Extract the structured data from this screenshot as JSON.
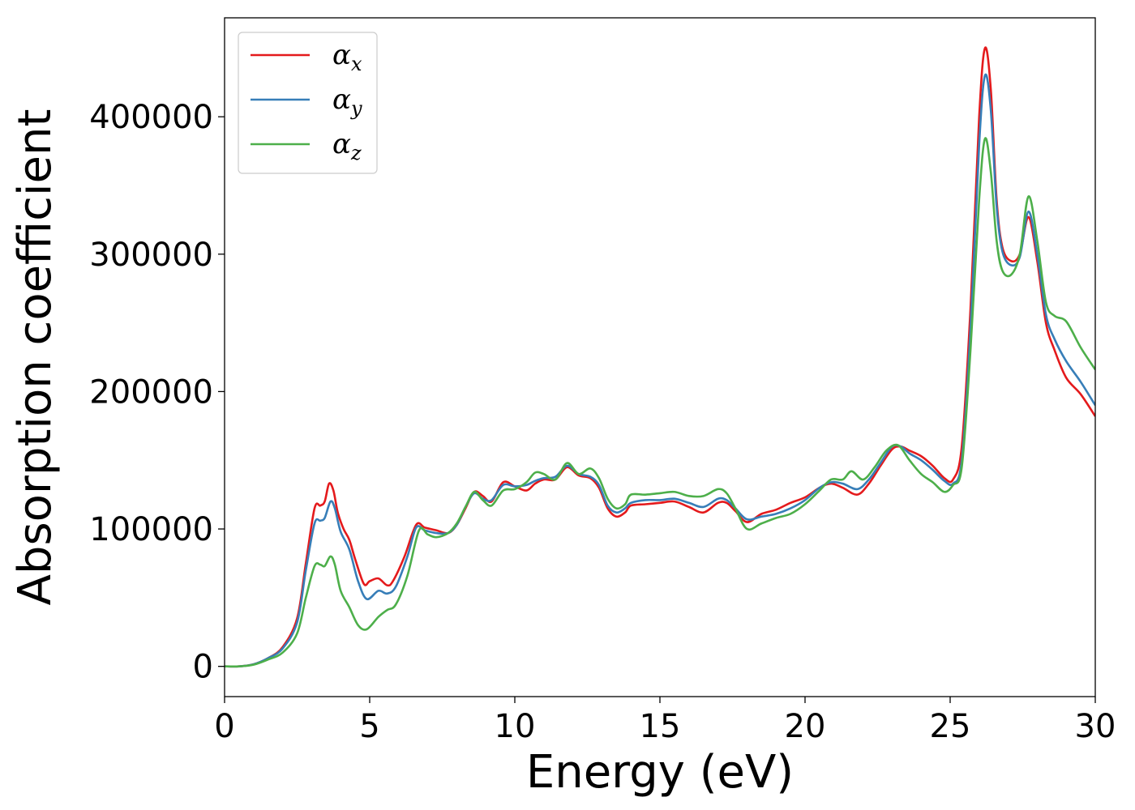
{
  "chart_data": {
    "type": "line",
    "title": "",
    "xlabel": "Energy (eV)",
    "ylabel": "Absorption coefficient",
    "xlim": [
      0,
      30
    ],
    "ylim": [
      -22000,
      472000
    ],
    "xticks": [
      "0",
      "5",
      "10",
      "15",
      "20",
      "25",
      "30"
    ],
    "xtick_values": [
      0,
      5,
      10,
      15,
      20,
      25,
      30
    ],
    "yticks": [
      "0",
      "100000",
      "200000",
      "300000",
      "400000"
    ],
    "ytick_values": [
      0,
      100000,
      200000,
      300000,
      400000
    ],
    "grid": false,
    "legend_position": "top-left",
    "series": [
      {
        "name": "α",
        "subscript": "x",
        "color": "#e41a1c",
        "points": [
          [
            0,
            0
          ],
          [
            0.5,
            0
          ],
          [
            1,
            1500
          ],
          [
            1.5,
            6000
          ],
          [
            2,
            14000
          ],
          [
            2.5,
            35000
          ],
          [
            2.8,
            75000
          ],
          [
            3.1,
            115000
          ],
          [
            3.3,
            117000
          ],
          [
            3.45,
            120000
          ],
          [
            3.6,
            133000
          ],
          [
            3.75,
            128000
          ],
          [
            3.9,
            112000
          ],
          [
            4.1,
            100000
          ],
          [
            4.3,
            92000
          ],
          [
            4.5,
            78000
          ],
          [
            4.8,
            60000
          ],
          [
            5.0,
            62000
          ],
          [
            5.3,
            64000
          ],
          [
            5.6,
            59000
          ],
          [
            5.8,
            62000
          ],
          [
            6.2,
            80000
          ],
          [
            6.6,
            103000
          ],
          [
            6.9,
            101000
          ],
          [
            7.3,
            99000
          ],
          [
            7.7,
            97000
          ],
          [
            8.0,
            103000
          ],
          [
            8.3,
            115000
          ],
          [
            8.6,
            127000
          ],
          [
            8.9,
            124000
          ],
          [
            9.2,
            120000
          ],
          [
            9.6,
            134000
          ],
          [
            10.0,
            131000
          ],
          [
            10.4,
            128000
          ],
          [
            10.7,
            133000
          ],
          [
            11.0,
            136000
          ],
          [
            11.4,
            136000
          ],
          [
            11.8,
            145000
          ],
          [
            12.2,
            139000
          ],
          [
            12.6,
            137000
          ],
          [
            12.9,
            130000
          ],
          [
            13.2,
            115000
          ],
          [
            13.5,
            109000
          ],
          [
            13.8,
            112000
          ],
          [
            14.0,
            117000
          ],
          [
            14.5,
            118000
          ],
          [
            15.0,
            119000
          ],
          [
            15.5,
            120000
          ],
          [
            16.0,
            116000
          ],
          [
            16.5,
            112000
          ],
          [
            17.0,
            119000
          ],
          [
            17.3,
            119000
          ],
          [
            17.6,
            113000
          ],
          [
            18.0,
            105000
          ],
          [
            18.5,
            111000
          ],
          [
            19.0,
            114000
          ],
          [
            19.5,
            119000
          ],
          [
            20.0,
            123000
          ],
          [
            20.5,
            130000
          ],
          [
            20.9,
            133000
          ],
          [
            21.3,
            130000
          ],
          [
            21.8,
            125000
          ],
          [
            22.2,
            133000
          ],
          [
            22.6,
            146000
          ],
          [
            23.0,
            158000
          ],
          [
            23.3,
            160000
          ],
          [
            23.6,
            157000
          ],
          [
            24.0,
            153000
          ],
          [
            24.4,
            146000
          ],
          [
            24.8,
            137000
          ],
          [
            25.1,
            136000
          ],
          [
            25.4,
            160000
          ],
          [
            25.7,
            260000
          ],
          [
            26.0,
            400000
          ],
          [
            26.2,
            450000
          ],
          [
            26.4,
            420000
          ],
          [
            26.6,
            340000
          ],
          [
            26.8,
            305000
          ],
          [
            27.1,
            295000
          ],
          [
            27.4,
            300000
          ],
          [
            27.7,
            327000
          ],
          [
            28.0,
            295000
          ],
          [
            28.3,
            250000
          ],
          [
            28.6,
            230000
          ],
          [
            29.0,
            210000
          ],
          [
            29.5,
            198000
          ],
          [
            30,
            182000
          ]
        ]
      },
      {
        "name": "α",
        "subscript": "y",
        "color": "#377eb8",
        "points": [
          [
            0,
            0
          ],
          [
            0.5,
            0
          ],
          [
            1,
            1500
          ],
          [
            1.5,
            6000
          ],
          [
            2,
            13000
          ],
          [
            2.5,
            32000
          ],
          [
            2.8,
            70000
          ],
          [
            3.1,
            104000
          ],
          [
            3.3,
            106000
          ],
          [
            3.45,
            108000
          ],
          [
            3.65,
            120000
          ],
          [
            3.8,
            115000
          ],
          [
            4.0,
            98000
          ],
          [
            4.3,
            85000
          ],
          [
            4.6,
            62000
          ],
          [
            4.9,
            49000
          ],
          [
            5.3,
            55000
          ],
          [
            5.6,
            53000
          ],
          [
            5.9,
            58000
          ],
          [
            6.3,
            80000
          ],
          [
            6.6,
            101000
          ],
          [
            6.9,
            99000
          ],
          [
            7.3,
            97000
          ],
          [
            7.7,
            97000
          ],
          [
            8.0,
            103000
          ],
          [
            8.3,
            116000
          ],
          [
            8.6,
            126000
          ],
          [
            8.9,
            122000
          ],
          [
            9.2,
            121000
          ],
          [
            9.6,
            132000
          ],
          [
            10.0,
            131000
          ],
          [
            10.4,
            132000
          ],
          [
            10.7,
            135000
          ],
          [
            11.0,
            137000
          ],
          [
            11.4,
            138000
          ],
          [
            11.8,
            146000
          ],
          [
            12.2,
            140000
          ],
          [
            12.6,
            138000
          ],
          [
            12.9,
            132000
          ],
          [
            13.2,
            117000
          ],
          [
            13.5,
            112000
          ],
          [
            13.8,
            115000
          ],
          [
            14.0,
            119000
          ],
          [
            14.5,
            121000
          ],
          [
            15.0,
            121000
          ],
          [
            15.5,
            122000
          ],
          [
            16.0,
            119000
          ],
          [
            16.5,
            116000
          ],
          [
            17.0,
            122000
          ],
          [
            17.3,
            121000
          ],
          [
            17.6,
            115000
          ],
          [
            18.0,
            107000
          ],
          [
            18.5,
            109000
          ],
          [
            19.0,
            111000
          ],
          [
            19.5,
            115000
          ],
          [
            20.0,
            121000
          ],
          [
            20.5,
            130000
          ],
          [
            20.9,
            134000
          ],
          [
            21.3,
            133000
          ],
          [
            21.8,
            129000
          ],
          [
            22.2,
            136000
          ],
          [
            22.6,
            148000
          ],
          [
            23.0,
            160000
          ],
          [
            23.3,
            160000
          ],
          [
            23.6,
            155000
          ],
          [
            24.0,
            150000
          ],
          [
            24.4,
            143000
          ],
          [
            24.8,
            135000
          ],
          [
            25.1,
            133000
          ],
          [
            25.4,
            150000
          ],
          [
            25.7,
            245000
          ],
          [
            26.0,
            380000
          ],
          [
            26.2,
            430000
          ],
          [
            26.4,
            405000
          ],
          [
            26.6,
            335000
          ],
          [
            26.8,
            302000
          ],
          [
            27.1,
            292000
          ],
          [
            27.4,
            298000
          ],
          [
            27.7,
            331000
          ],
          [
            28.0,
            300000
          ],
          [
            28.3,
            256000
          ],
          [
            28.6,
            238000
          ],
          [
            29.0,
            222000
          ],
          [
            29.5,
            207000
          ],
          [
            30,
            190000
          ]
        ]
      },
      {
        "name": "α",
        "subscript": "z",
        "color": "#4daf4a",
        "points": [
          [
            0,
            0
          ],
          [
            0.5,
            0
          ],
          [
            1,
            1200
          ],
          [
            1.5,
            5000
          ],
          [
            2,
            10000
          ],
          [
            2.5,
            24000
          ],
          [
            2.8,
            50000
          ],
          [
            3.1,
            73000
          ],
          [
            3.3,
            74000
          ],
          [
            3.45,
            73000
          ],
          [
            3.65,
            80000
          ],
          [
            3.8,
            74000
          ],
          [
            4.0,
            55000
          ],
          [
            4.3,
            43000
          ],
          [
            4.6,
            30000
          ],
          [
            4.9,
            27000
          ],
          [
            5.3,
            36000
          ],
          [
            5.6,
            41000
          ],
          [
            5.9,
            45000
          ],
          [
            6.3,
            66000
          ],
          [
            6.7,
            99000
          ],
          [
            7.0,
            96000
          ],
          [
            7.3,
            94000
          ],
          [
            7.7,
            97000
          ],
          [
            8.0,
            104000
          ],
          [
            8.3,
            116000
          ],
          [
            8.6,
            127000
          ],
          [
            8.9,
            121000
          ],
          [
            9.2,
            117000
          ],
          [
            9.6,
            128000
          ],
          [
            10.0,
            129000
          ],
          [
            10.4,
            134000
          ],
          [
            10.7,
            141000
          ],
          [
            11.0,
            140000
          ],
          [
            11.4,
            136000
          ],
          [
            11.8,
            148000
          ],
          [
            12.2,
            140000
          ],
          [
            12.6,
            144000
          ],
          [
            12.9,
            137000
          ],
          [
            13.2,
            122000
          ],
          [
            13.5,
            115000
          ],
          [
            13.8,
            118000
          ],
          [
            14.0,
            125000
          ],
          [
            14.5,
            125000
          ],
          [
            15.0,
            126000
          ],
          [
            15.5,
            127000
          ],
          [
            16.0,
            124000
          ],
          [
            16.5,
            124000
          ],
          [
            17.0,
            129000
          ],
          [
            17.3,
            126000
          ],
          [
            17.6,
            115000
          ],
          [
            18.0,
            100000
          ],
          [
            18.5,
            104000
          ],
          [
            19.0,
            108000
          ],
          [
            19.5,
            111000
          ],
          [
            20.0,
            118000
          ],
          [
            20.5,
            128000
          ],
          [
            20.9,
            136000
          ],
          [
            21.3,
            136000
          ],
          [
            21.6,
            142000
          ],
          [
            22.0,
            136000
          ],
          [
            22.4,
            145000
          ],
          [
            22.8,
            157000
          ],
          [
            23.2,
            161000
          ],
          [
            23.6,
            150000
          ],
          [
            24.0,
            140000
          ],
          [
            24.4,
            134000
          ],
          [
            24.8,
            127000
          ],
          [
            25.1,
            132000
          ],
          [
            25.4,
            145000
          ],
          [
            25.7,
            230000
          ],
          [
            26.0,
            340000
          ],
          [
            26.2,
            384000
          ],
          [
            26.4,
            360000
          ],
          [
            26.6,
            310000
          ],
          [
            26.8,
            288000
          ],
          [
            27.1,
            285000
          ],
          [
            27.4,
            300000
          ],
          [
            27.7,
            342000
          ],
          [
            28.0,
            310000
          ],
          [
            28.3,
            265000
          ],
          [
            28.6,
            255000
          ],
          [
            29.0,
            251000
          ],
          [
            29.5,
            232000
          ],
          [
            30,
            216000
          ]
        ]
      }
    ]
  }
}
